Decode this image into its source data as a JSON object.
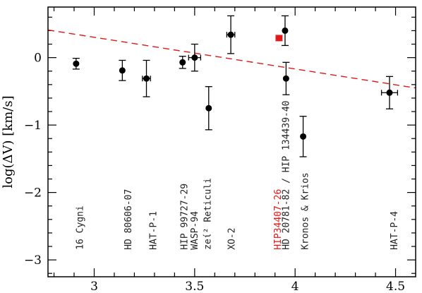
{
  "chart_data": {
    "type": "scatter",
    "title": "",
    "xlabel": "",
    "ylabel": "log(ΔV) [km/s]",
    "xlim": [
      2.77,
      4.6
    ],
    "ylim": [
      -3.25,
      0.75
    ],
    "x_ticks": [
      3,
      3.5,
      4,
      4.5
    ],
    "x_tick_labels": [
      "3",
      "3.5",
      "4",
      "4.5"
    ],
    "y_ticks": [
      0,
      -1,
      -2,
      -3
    ],
    "y_tick_labels": [
      "0",
      "−1",
      "−2",
      "−3"
    ],
    "x_minor_step": 0.1,
    "y_minor_step": 0.2,
    "grid": false,
    "colors": {
      "points": "#000000",
      "highlight": "#e01818",
      "fit_line": "#e01818"
    },
    "series": [
      {
        "points": [
          {
            "x": 2.91,
            "y": -0.09,
            "err_low": 0.08,
            "err_high": 0.08,
            "x_err": 0
          },
          {
            "x": 3.14,
            "y": -0.19,
            "err_low": 0.15,
            "err_high": 0.15,
            "x_err": 0
          },
          {
            "x": 3.26,
            "y": -0.31,
            "err_low": 0.27,
            "err_high": 0.27,
            "x_err": 0.02
          },
          {
            "x": 3.44,
            "y": -0.07,
            "err_low": 0.09,
            "err_high": 0.09,
            "x_err": 0
          },
          {
            "x": 3.5,
            "y": 0.0,
            "err_low": 0.2,
            "err_high": 0.2,
            "x_err": 0.03
          },
          {
            "x": 3.57,
            "y": -0.75,
            "err_low": 0.32,
            "err_high": 0.32,
            "x_err": 0
          },
          {
            "x": 3.68,
            "y": 0.34,
            "err_low": 0.28,
            "err_high": 0.28,
            "x_err": 0.02
          },
          {
            "x": 3.95,
            "y": 0.4,
            "err_low": 0.22,
            "err_high": 0.22,
            "x_err": 0
          },
          {
            "x": 3.955,
            "y": -0.31,
            "err_low": 0.24,
            "err_high": 0.24,
            "x_err": 0
          },
          {
            "x": 4.04,
            "y": -1.17,
            "err_low": 0.3,
            "err_high": 0.3,
            "x_err": 0
          },
          {
            "x": 4.47,
            "y": -0.52,
            "err_low": 0.24,
            "err_high": 0.24,
            "x_err": 0.04
          }
        ]
      },
      {
        "highlight": true,
        "points": [
          {
            "x": 3.92,
            "y": 0.29,
            "err_low": 0.04,
            "err_high": 0.04,
            "x_err": 0.015
          }
        ]
      }
    ],
    "fit_line": {
      "x": [
        2.77,
        4.6
      ],
      "y": [
        0.41,
        -0.45
      ],
      "style": "dashed"
    },
    "annotations": [
      {
        "text": "16 Cygni",
        "x": 2.93,
        "y": -2.85
      },
      {
        "text": "HD 80606-07",
        "x": 3.17,
        "y": -2.85
      },
      {
        "text": "HAT-P-1",
        "x": 3.295,
        "y": -2.85
      },
      {
        "text": "HIP 99727-29",
        "x": 3.45,
        "y": -2.85
      },
      {
        "text": "WASP-94",
        "x": 3.5,
        "y": -2.85
      },
      {
        "text": "zeί² Reticuli",
        "x": 3.565,
        "y": -2.85
      },
      {
        "text": "XO-2",
        "x": 3.685,
        "y": -2.85
      },
      {
        "text": "HIP34407-26",
        "x": 3.915,
        "y": -2.85,
        "highlight": true
      },
      {
        "text": "HD 20781-82 / HIP 134439-40",
        "x": 3.955,
        "y": -2.85
      },
      {
        "text": "Kronos & Krios",
        "x": 4.05,
        "y": -2.85
      },
      {
        "text": "HAT-P-4",
        "x": 4.495,
        "y": -2.85
      }
    ]
  }
}
